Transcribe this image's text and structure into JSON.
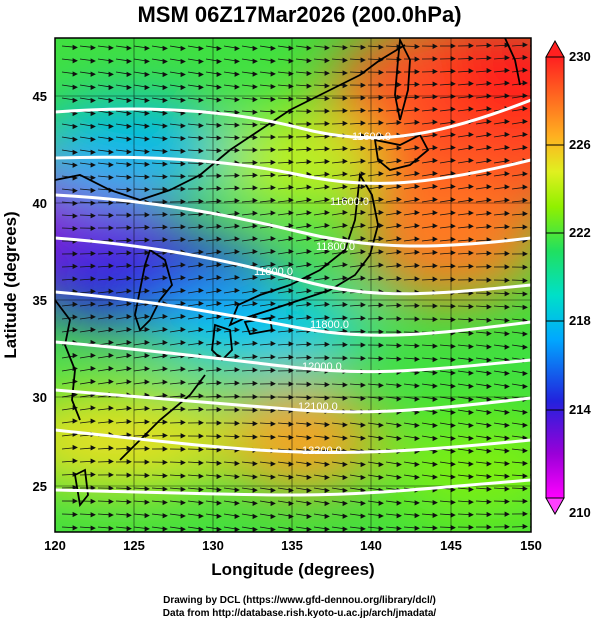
{
  "title": "MSM 06Z17Mar2026 (200.0hPa)",
  "map": {
    "x_axis": {
      "label": "Longitude (degrees)",
      "ticks": [
        120,
        125,
        130,
        135,
        140,
        145,
        150
      ],
      "range": [
        120,
        150
      ]
    },
    "y_axis": {
      "label": "Latitude  (degrees)",
      "ticks": [
        25,
        30,
        35,
        40,
        45
      ],
      "range": [
        22.4,
        47.6
      ]
    },
    "contours": [
      {
        "label": "11600.0"
      },
      {
        "label": "11600.0"
      },
      {
        "label": "11800.0"
      },
      {
        "label": "11800.0"
      },
      {
        "label": "11800.0"
      },
      {
        "label": "12000.0"
      },
      {
        "label": "12100.0"
      },
      {
        "label": "12200.0"
      }
    ]
  },
  "colorbar": {
    "labels": [
      "230",
      "226",
      "222",
      "218",
      "214",
      "210"
    ],
    "min": 210,
    "max": 230,
    "colors": [
      "#ff00ff",
      "#9a00d8",
      "#2222dd",
      "#00a8ff",
      "#00e0c8",
      "#20e060",
      "#90f000",
      "#e0f020",
      "#ffb020",
      "#ff6020",
      "#ff2020"
    ]
  },
  "footer": {
    "line1": "Drawing by DCL (https://www.gfd-dennou.org/library/dcl/)",
    "line2": "Data from http://database.rish.kyoto-u.ac.jp/arch/jmadata/"
  }
}
